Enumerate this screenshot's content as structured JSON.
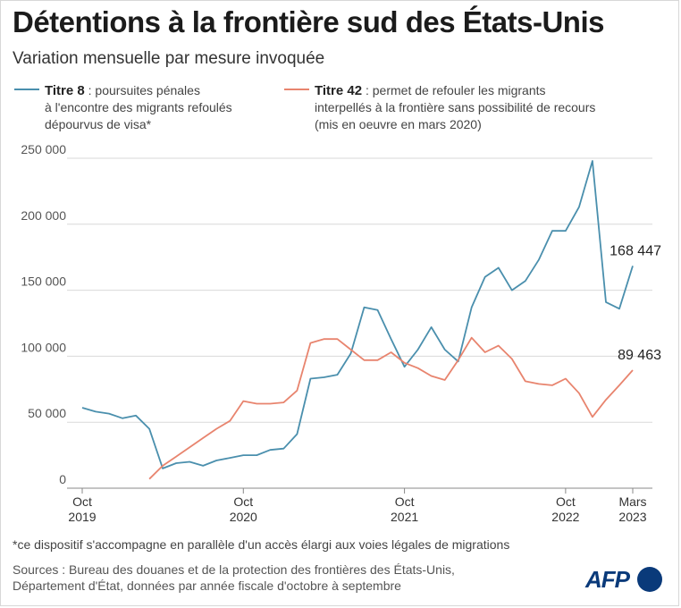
{
  "title": "Détentions à la frontière sud des États-Unis",
  "subtitle": "Variation mensuelle par mesure invoquée",
  "legend": [
    {
      "name": "Titre 8",
      "sep": " : ",
      "lines": [
        "poursuites pénales",
        "à l'encontre des migrants refoulés",
        "dépourvus de visa*"
      ],
      "color": "#4a8fad"
    },
    {
      "name": "Titre 42",
      "sep": " : ",
      "lines": [
        "permet de refouler les migrants",
        "interpellés à la frontière sans possibilité de recours",
        "(mis en oeuvre en mars 2020)"
      ],
      "color": "#e8846e"
    }
  ],
  "footnote": "*ce dispositif s'accompagne en parallèle d'un accès élargi aux voies légales de migrations",
  "sources": [
    "Sources : Bureau des douanes et de la protection des frontières des États-Unis,",
    "Département d'État, données par année fiscale d'octobre à septembre"
  ],
  "logo_text": "AFP",
  "chart_data": {
    "type": "line",
    "title": "Détentions à la frontière sud des États-Unis",
    "subtitle": "Variation mensuelle par mesure invoquée",
    "x_start": "2019-10",
    "x_end": "2023-03",
    "x": [
      "2019-10",
      "2019-11",
      "2019-12",
      "2020-01",
      "2020-02",
      "2020-03",
      "2020-04",
      "2020-05",
      "2020-06",
      "2020-07",
      "2020-08",
      "2020-09",
      "2020-10",
      "2020-11",
      "2020-12",
      "2021-01",
      "2021-02",
      "2021-03",
      "2021-04",
      "2021-05",
      "2021-06",
      "2021-07",
      "2021-08",
      "2021-09",
      "2021-10",
      "2021-11",
      "2021-12",
      "2022-01",
      "2022-02",
      "2022-03",
      "2022-04",
      "2022-05",
      "2022-06",
      "2022-07",
      "2022-08",
      "2022-09",
      "2022-10",
      "2022-11",
      "2022-12",
      "2023-01",
      "2023-02",
      "2023-03"
    ],
    "xticks": [
      {
        "x": "2019-10",
        "label": [
          "Oct",
          "2019"
        ]
      },
      {
        "x": "2020-10",
        "label": [
          "Oct",
          "2020"
        ]
      },
      {
        "x": "2021-10",
        "label": [
          "Oct",
          "2021"
        ]
      },
      {
        "x": "2022-10",
        "label": [
          "Oct",
          "2022"
        ]
      },
      {
        "x": "2023-03",
        "label": [
          "Mars",
          "2023"
        ]
      }
    ],
    "ylim": [
      0,
      250000
    ],
    "yticks": [
      0,
      50000,
      100000,
      150000,
      200000,
      250000
    ],
    "ytick_labels": [
      "0",
      "50 000",
      "100 000",
      "150 000",
      "200 000",
      "250 000"
    ],
    "grid": true,
    "series": [
      {
        "name": "Titre 8",
        "color": "#4a8fad",
        "values": [
          61000,
          58000,
          56500,
          53000,
          55000,
          45000,
          15000,
          19000,
          20000,
          17000,
          21000,
          23000,
          25000,
          25000,
          29000,
          30000,
          41000,
          83000,
          84000,
          86000,
          102000,
          137000,
          135000,
          113000,
          92000,
          105000,
          122000,
          105000,
          96000,
          137000,
          160000,
          167000,
          150000,
          157000,
          173000,
          195000,
          195000,
          213000,
          248000,
          141000,
          136000,
          168447
        ],
        "end_label": "168 447"
      },
      {
        "name": "Titre 42",
        "color": "#e8846e",
        "values": [
          null,
          null,
          null,
          null,
          null,
          7000,
          17000,
          24000,
          31000,
          38000,
          45000,
          51000,
          66000,
          64000,
          64000,
          65000,
          74000,
          110000,
          113000,
          113000,
          105000,
          97000,
          97000,
          103000,
          95000,
          91000,
          85000,
          82000,
          97000,
          114000,
          103000,
          108000,
          98000,
          81000,
          79000,
          78000,
          83000,
          72000,
          54000,
          67000,
          78000,
          89463
        ],
        "end_label": "89 463"
      }
    ]
  }
}
